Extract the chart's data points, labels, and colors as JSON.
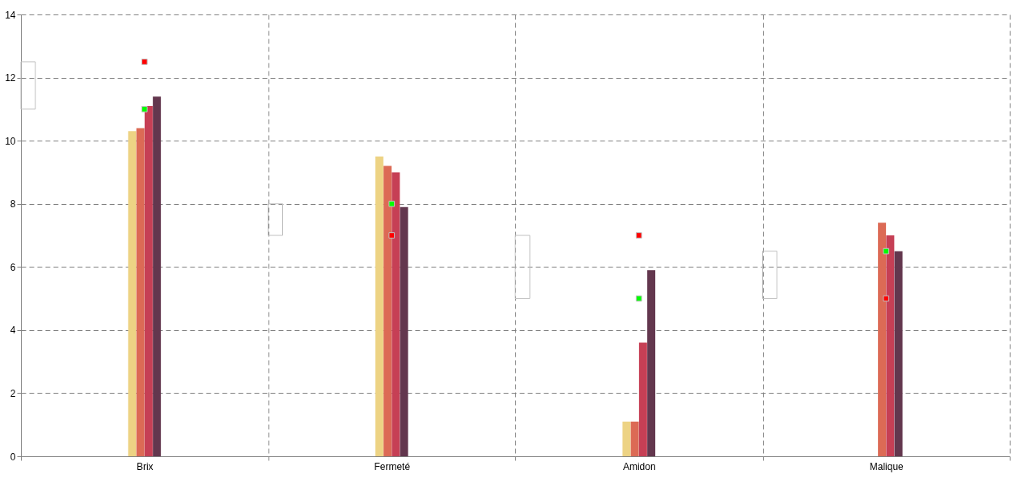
{
  "chart_data": {
    "type": "bar",
    "categories": [
      "Brix",
      "Fermeté",
      "Amidon",
      "Malique"
    ],
    "ylim": [
      0,
      14
    ],
    "yticks": [
      0,
      2,
      4,
      6,
      8,
      10,
      12,
      14
    ],
    "grid": true,
    "legend": false,
    "series": [
      {
        "color": "#edd384",
        "values": [
          10.3,
          9.5,
          1.1,
          0
        ]
      },
      {
        "color": "#dc6a55",
        "values": [
          10.4,
          9.2,
          1.1,
          7.4
        ]
      },
      {
        "color": "#c63f55",
        "values": [
          11.1,
          9.0,
          3.6,
          7.0
        ]
      },
      {
        "color": "#63374e",
        "values": [
          11.4,
          7.9,
          5.9,
          6.5
        ]
      },
      {
        "type": "bar",
        "color": "#c0c0c0",
        "base": [
          11,
          7,
          5,
          5
        ],
        "values": [
          1.5,
          1,
          2,
          1.5
        ]
      },
      {
        "type": "scatter",
        "color": "#00ff00",
        "marker": "square",
        "x": [
          "Brix",
          "Fermeté",
          "Amidon",
          "Malique"
        ],
        "values": [
          11,
          8,
          5,
          6.5
        ]
      },
      {
        "type": "scatter",
        "color": "#ff0000",
        "marker": "square",
        "x": [
          "Brix",
          "Fermeté",
          "Amidon",
          "Malique"
        ],
        "values": [
          12.5,
          7,
          7,
          5
        ]
      }
    ]
  }
}
